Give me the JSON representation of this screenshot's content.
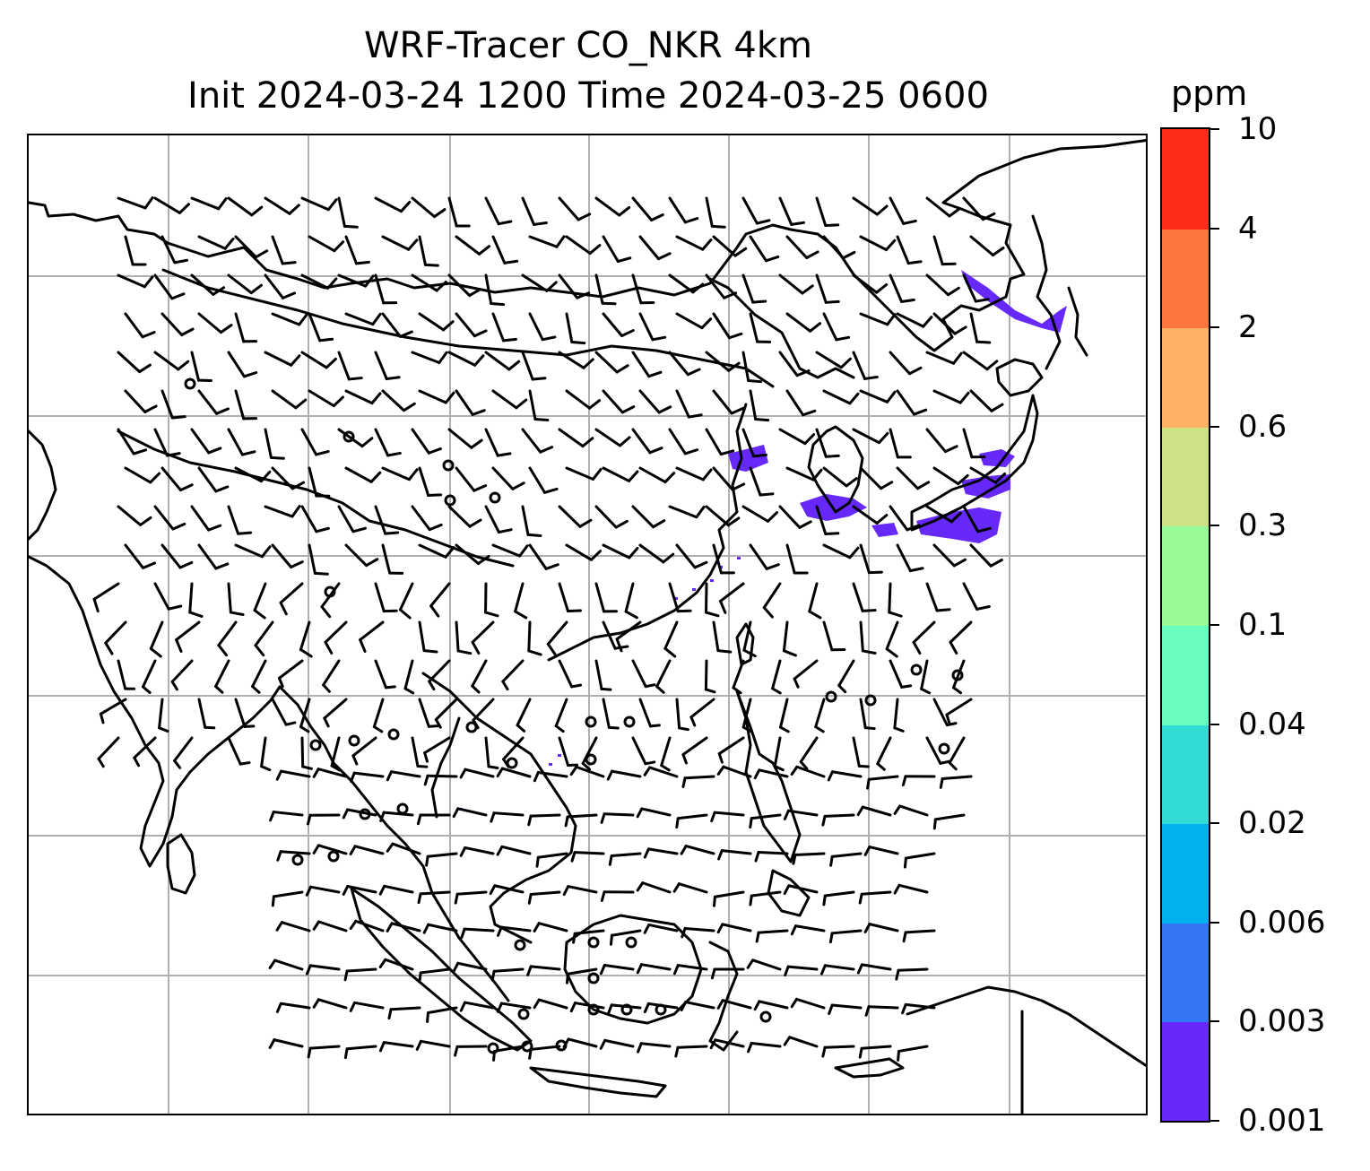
{
  "title": {
    "line1": "WRF-Tracer CO_NKR 4km",
    "line2": "Init 2024-03-24 1200 Time 2024-03-25 0600"
  },
  "colorbar": {
    "unit": "ppm",
    "ticks": [
      "0.001",
      "0.003",
      "0.006",
      "0.02",
      "0.04",
      "0.1",
      "0.3",
      "0.6",
      "2",
      "4",
      "10"
    ],
    "colors": [
      "#6629fa",
      "#3375f5",
      "#00b1ec",
      "#32dcd6",
      "#68fcbf",
      "#99fb98",
      "#cce284",
      "#fdb164",
      "#fe7540",
      "#ff2b1a"
    ]
  },
  "map": {
    "gridlines": true,
    "gridline_color": "#b0b0b0",
    "coastline_color": "#000000",
    "plume_color": "#6629fa",
    "wind_symbol": "wind-barb"
  }
}
